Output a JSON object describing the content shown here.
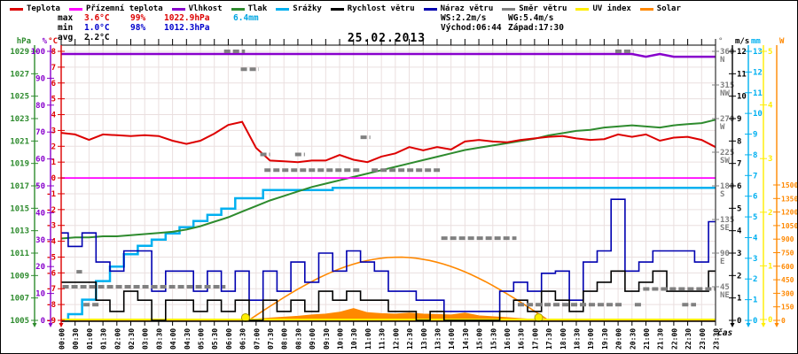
{
  "title": "25.02.2013",
  "xlabel": "čas",
  "legend": {
    "items": [
      {
        "label": "Teplota",
        "color": "#dd0000"
      },
      {
        "label": "Přízemní teplota",
        "color": "#ff00ff"
      },
      {
        "label": "Vlhkost",
        "color": "#8800cc"
      },
      {
        "label": "Tlak",
        "color": "#2e8b2e"
      },
      {
        "label": "Srážky",
        "color": "#00b0f0"
      },
      {
        "label": "Rychlost větru",
        "color": "#000000"
      },
      {
        "label": "Náraz větru",
        "color": "#0000b0"
      },
      {
        "label": "Směr větru",
        "color": "#808080"
      },
      {
        "label": "UV index",
        "color": "#ffee00"
      },
      {
        "label": "Solar",
        "color": "#ff8800"
      }
    ]
  },
  "stats": {
    "max_label": "max",
    "max_temp": "3.6°C",
    "max_hum": "99%",
    "max_pres": "1022.9hPa",
    "max_rain": "6.4mm",
    "min_label": "min",
    "min_temp": "1.0°C",
    "min_hum": "98%",
    "min_pres": "1012.3hPa",
    "avg_label": "avg",
    "avg_temp": "2.2°C",
    "wind_speed": "WS:2.2m/s",
    "wind_gust": "WG:5.4m/s",
    "sunrise": "Východ:06:44",
    "sunset": "Západ:17:30"
  },
  "chart_data": {
    "type": "line",
    "title": "25.02.2013",
    "xlabel": "čas",
    "x_step_hours": 0.5,
    "x_labels": [
      "00:00",
      "00:30",
      "01:00",
      "01:30",
      "02:00",
      "02:30",
      "03:00",
      "03:30",
      "04:00",
      "04:30",
      "05:00",
      "05:30",
      "06:00",
      "06:30",
      "07:00",
      "07:30",
      "08:00",
      "08:30",
      "09:00",
      "09:30",
      "10:00",
      "10:30",
      "11:00",
      "11:30",
      "12:00",
      "12:30",
      "13:00",
      "13:30",
      "14:00",
      "14:30",
      "15:00",
      "15:30",
      "16:00",
      "16:30",
      "17:00",
      "17:30",
      "18:00",
      "18:30",
      "19:00",
      "19:30",
      "20:00",
      "20:30",
      "21:00",
      "21:30",
      "22:00",
      "22:30",
      "23:00",
      "23:30"
    ],
    "axes": {
      "hpa": {
        "vTop": 1029,
        "vBottom": 1005,
        "color": "#2e8b2e",
        "header": "hPa",
        "ticks": [
          1029,
          1027,
          1025,
          1023,
          1021,
          1019,
          1017,
          1015,
          1013,
          1011,
          1009,
          1007,
          1005
        ]
      },
      "hum": {
        "vTop": 100,
        "vBottom": 0,
        "color": "#8800cc",
        "header": "%",
        "ticks": [
          100,
          90,
          80,
          70,
          60,
          50,
          40,
          30,
          20,
          10,
          0
        ]
      },
      "temp": {
        "vTop": 8,
        "vBottom": -9,
        "color": "#dd0000",
        "header": "°C",
        "ticks": [
          8,
          7,
          6,
          5,
          4,
          3,
          2,
          1,
          0,
          -1,
          -2,
          -3,
          -4,
          -5,
          -6,
          -7,
          -8,
          -9
        ]
      },
      "deg": {
        "vTop": 360,
        "vBottom": 0,
        "color": "#808080",
        "header": "°",
        "ticks": [
          {
            "v": 360,
            "d": "N"
          },
          {
            "v": 315,
            "d": "NW"
          },
          {
            "v": 270,
            "d": "W"
          },
          {
            "v": 225,
            "d": "SW"
          },
          {
            "v": 180,
            "d": "S"
          },
          {
            "v": 135,
            "d": "SE"
          },
          {
            "v": 90,
            "d": "E"
          },
          {
            "v": 45,
            "d": "NE"
          }
        ]
      },
      "ms": {
        "vTop": 12,
        "vBottom": 0,
        "color": "#000000",
        "header": "m/s",
        "ticks": [
          12,
          11,
          10,
          9,
          8,
          7,
          6,
          5,
          4,
          3,
          2,
          1,
          0
        ]
      },
      "mm": {
        "vTop": 13,
        "vBottom": 0,
        "color": "#00b0f0",
        "header": "mm",
        "ticks": [
          13,
          12,
          11,
          10,
          9,
          8,
          7,
          6,
          5,
          4,
          3,
          2,
          1,
          0
        ]
      },
      "uv": {
        "vTop": 5,
        "vBottom": 0,
        "yBottom": 360,
        "color": "#ffee00",
        "header": "",
        "ticks": [
          5,
          4,
          3,
          2,
          1,
          0
        ]
      },
      "w": {
        "vTop": 1500,
        "vBottom": 0,
        "yTop": 208,
        "color": "#ff8800",
        "header": "W",
        "ticks": [
          1500,
          1350,
          1200,
          1050,
          900,
          750,
          600,
          450,
          300,
          150,
          0
        ]
      }
    },
    "series": [
      {
        "name": "Teplota",
        "axis": "temp",
        "color": "#dd0000",
        "width": 2,
        "mode": "line",
        "values": [
          2.85,
          2.75,
          2.4,
          2.75,
          2.7,
          2.65,
          2.7,
          2.65,
          2.35,
          2.15,
          2.35,
          2.8,
          3.35,
          3.55,
          1.9,
          1.1,
          1.05,
          1.0,
          1.1,
          1.1,
          1.45,
          1.15,
          1.0,
          1.35,
          1.55,
          1.95,
          1.75,
          1.95,
          1.8,
          2.3,
          2.4,
          2.3,
          2.25,
          2.4,
          2.5,
          2.6,
          2.65,
          2.5,
          2.4,
          2.45,
          2.75,
          2.6,
          2.75,
          2.35,
          2.55,
          2.6,
          2.4,
          1.95
        ]
      },
      {
        "name": "Přízemní teplota",
        "axis": "temp",
        "color": "#ff00ff",
        "width": 1.8,
        "mode": "line",
        "constant": 0.0
      },
      {
        "name": "Vlhkost",
        "axis": "hum",
        "color": "#8800cc",
        "width": 2.5,
        "mode": "line",
        "values": [
          99,
          99,
          99,
          99,
          99,
          99,
          99,
          99,
          99,
          99,
          99,
          99,
          99,
          99,
          99,
          99,
          99,
          99,
          99,
          99,
          99,
          99,
          99,
          99,
          99,
          99,
          99,
          99,
          99,
          99,
          99,
          99,
          99,
          99,
          99,
          99,
          99,
          99,
          99,
          99,
          99,
          99,
          98,
          99,
          98,
          98,
          98,
          98
        ]
      },
      {
        "name": "Tlak",
        "axis": "hpa",
        "color": "#2e8b2e",
        "width": 2,
        "mode": "line",
        "values": [
          1012.3,
          1012.4,
          1012.4,
          1012.5,
          1012.5,
          1012.6,
          1012.7,
          1012.8,
          1012.9,
          1013.1,
          1013.4,
          1013.8,
          1014.2,
          1014.7,
          1015.2,
          1015.7,
          1016.1,
          1016.5,
          1016.9,
          1017.2,
          1017.5,
          1017.8,
          1018.1,
          1018.4,
          1018.7,
          1019.0,
          1019.3,
          1019.6,
          1019.9,
          1020.2,
          1020.4,
          1020.6,
          1020.8,
          1021.0,
          1021.2,
          1021.5,
          1021.7,
          1021.9,
          1022.0,
          1022.2,
          1022.3,
          1022.4,
          1022.3,
          1022.2,
          1022.4,
          1022.5,
          1022.6,
          1022.9
        ]
      },
      {
        "name": "Srážky",
        "axis": "mm",
        "color": "#00b0f0",
        "width": 2.5,
        "mode": "step",
        "values": [
          0,
          0.3,
          1.0,
          1.9,
          2.6,
          3.2,
          3.6,
          3.9,
          4.2,
          4.5,
          4.8,
          5.1,
          5.4,
          5.9,
          5.9,
          6.3,
          6.3,
          6.3,
          6.3,
          6.3,
          6.4,
          6.4,
          6.4,
          6.4,
          6.4,
          6.4,
          6.4,
          6.4,
          6.4,
          6.4,
          6.4,
          6.4,
          6.4,
          6.4,
          6.4,
          6.4,
          6.4,
          6.4,
          6.4,
          6.4,
          6.4,
          6.4,
          6.4,
          6.4,
          6.4,
          6.4,
          6.4,
          6.4
        ]
      },
      {
        "name": "Rychlost větru",
        "axis": "ms",
        "color": "#000000",
        "width": 1.6,
        "mode": "step",
        "values": [
          1.7,
          1.7,
          1.7,
          0.9,
          0.4,
          1.3,
          0.9,
          0,
          0.9,
          0.9,
          0.4,
          0.9,
          0.4,
          0.9,
          0,
          0.9,
          0.4,
          0.9,
          0.4,
          1.3,
          0.9,
          1.3,
          0.9,
          0.9,
          0.4,
          0.4,
          0,
          0.4,
          0,
          0,
          0,
          0,
          0.4,
          0.9,
          0.4,
          1.3,
          0.9,
          0.4,
          1.3,
          1.7,
          2.2,
          1.3,
          1.7,
          2.2,
          1.3,
          1.3,
          1.3,
          2.2
        ]
      },
      {
        "name": "Náraz větru",
        "axis": "ms",
        "color": "#0000b0",
        "width": 1.6,
        "mode": "step",
        "values": [
          3.9,
          3.3,
          3.9,
          2.6,
          2.2,
          3.1,
          3.1,
          1.3,
          2.2,
          2.2,
          1.3,
          2.2,
          1.3,
          2.2,
          0.9,
          2.2,
          1.3,
          2.6,
          1.7,
          3.0,
          2.2,
          3.1,
          2.6,
          2.2,
          1.3,
          1.3,
          0.9,
          0.9,
          0.4,
          0.4,
          0.4,
          0.4,
          1.3,
          1.7,
          1.3,
          2.1,
          2.2,
          0.9,
          2.6,
          3.1,
          5.4,
          2.2,
          2.6,
          3.1,
          3.1,
          3.1,
          2.6,
          4.4
        ]
      },
      {
        "name": "UV index",
        "axis": "uv",
        "color": "#ffee00",
        "width": 2,
        "mode": "line",
        "constant": 0
      },
      {
        "name": "Solar",
        "axis": "w",
        "color": "#ff8800",
        "mode": "area",
        "values": [
          0,
          0,
          0,
          0,
          0,
          0,
          0,
          0,
          0,
          0,
          0,
          0,
          0,
          0,
          15,
          25,
          35,
          45,
          60,
          70,
          90,
          130,
          85,
          75,
          70,
          80,
          70,
          65,
          60,
          80,
          50,
          40,
          30,
          20,
          10,
          0,
          0,
          0,
          0,
          0,
          0,
          0,
          0,
          0,
          0,
          0,
          0,
          0
        ]
      }
    ],
    "wind_direction_segments": [
      [
        0.05,
        5.9,
        45
      ],
      [
        0.55,
        0.75,
        65
      ],
      [
        0.8,
        1.4,
        21
      ],
      [
        5.85,
        6.6,
        360
      ],
      [
        6.45,
        7.1,
        336
      ],
      [
        7.15,
        7.5,
        222
      ],
      [
        7.3,
        10.75,
        201
      ],
      [
        8.4,
        8.75,
        222
      ],
      [
        10.75,
        11.1,
        245
      ],
      [
        11.15,
        13.6,
        201
      ],
      [
        13.65,
        16.35,
        110
      ],
      [
        16.4,
        20.15,
        21
      ],
      [
        19.9,
        20.55,
        360
      ],
      [
        20.6,
        20.85,
        21
      ],
      [
        22.3,
        22.8,
        21
      ],
      [
        20.9,
        23.5,
        42
      ]
    ],
    "solar_dome": {
      "sunrise_hour": 6.73,
      "sunset_hour": 17.5,
      "peak_w": 700
    },
    "sun_marker_hours": [
      6.62,
      17.15
    ],
    "grid": true,
    "grid_color": "#eadfdf"
  }
}
